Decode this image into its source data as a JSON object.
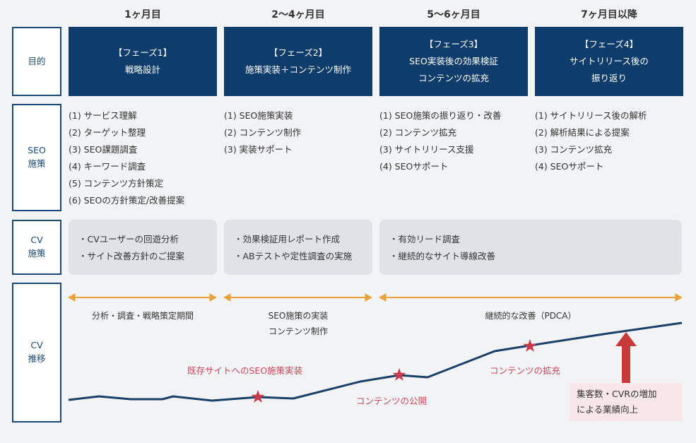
{
  "periods": [
    "1ヶ月目",
    "2〜4ヶ月目",
    "5〜6ヶ月目",
    "7ヶ月目以降"
  ],
  "row_labels": {
    "purpose": "目的",
    "seo": [
      "SEO",
      "施策"
    ],
    "cv": [
      "CV",
      "施策"
    ],
    "trend": [
      "CV",
      "推移"
    ]
  },
  "phases": [
    {
      "lines": [
        "【フェーズ1】",
        "戦略設計"
      ]
    },
    {
      "lines": [
        "【フェーズ2】",
        "施策実装＋コンテンツ制作"
      ]
    },
    {
      "lines": [
        "【フェーズ3】",
        "SEO実装後の効果検証",
        "コンテンツの拡充"
      ]
    },
    {
      "lines": [
        "【フェーズ4】",
        "サイトリリース後の",
        "振り返り"
      ]
    }
  ],
  "seo_measures": [
    [
      "(1) サービス理解",
      "(2) ターゲット整理",
      "(3) SEO課題調査",
      "(4) キーワード調査",
      "(5) コンテンツ方針策定",
      "(6) SEOの方針策定/改善提案"
    ],
    [
      "(1) SEO施策実装",
      "(2) コンテンツ制作",
      "(3) 実装サポート"
    ],
    [
      "(1) SEO施策の振り返り・改善",
      "(2) コンテンツ拡充",
      "(3) サイトリリース支援",
      "(4) SEOサポート"
    ],
    [
      "(1) サイトリリース後の解析",
      "(2) 解析結果による提案",
      "(3) コンテンツ拡充",
      "(4) SEOサポート"
    ]
  ],
  "cv_measures": [
    [
      "・CVユーザーの回遊分析",
      "・サイト改善方針のご提案"
    ],
    [
      "・効果検証用レポート作成",
      "・ABテストや定性調査の実施"
    ],
    [
      "・有効リード調査",
      "・継続的なサイト導線改善"
    ]
  ],
  "period_labels": [
    {
      "lines": [
        "分析・調査・戦略策定期間"
      ]
    },
    {
      "lines": [
        "SEO施策の実装",
        "コンテンツ制作"
      ]
    },
    {
      "lines": [
        "継続的な改善（PDCA）"
      ]
    }
  ],
  "annotations": {
    "seo_impl": "既存サイトへのSEO施策実装",
    "content_release": "コンテンツの公開",
    "content_expand": "コンテンツの拡充"
  },
  "result": [
    "集客数・CVRの増加",
    "による業績向上"
  ],
  "colors": {
    "navy": "#0f3d6b",
    "label_border": "#1a4a7a",
    "arrow_orange": "#e8a23a",
    "star_red": "#c83a4a",
    "up_arrow": "#c83a3a",
    "annotation": "#c84a5a",
    "cv_box_bg": "#dfe3e8",
    "result_bg": "#f9e6e8"
  }
}
